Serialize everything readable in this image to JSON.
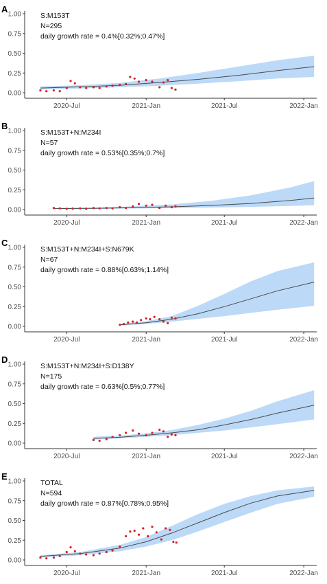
{
  "colors": {
    "ci_band": "#bcd9f7",
    "fit_line": "#4a4a4a",
    "points": "#d62021",
    "axis": "#333333"
  },
  "chart_data": [
    {
      "panel_letter": "A",
      "type": "line",
      "annotation": [
        "S:M153T",
        "N=295",
        "daily growth rate = 0.4%[0.32%;0.47%]"
      ],
      "x_ticks": [
        "2020-Jul",
        "2021-Jan",
        "2021-Jul",
        "2022-Jan"
      ],
      "y_ticks": [
        "0.00",
        "0.25",
        "0.50",
        "0.75",
        "1.00"
      ],
      "ylim": [
        0,
        1
      ],
      "fit": {
        "x": [
          "2020-05-01",
          "2020-08-01",
          "2020-11-01",
          "2021-02-01",
          "2021-05-01",
          "2021-08-01",
          "2021-11-01",
          "2022-01-25"
        ],
        "y": [
          0.06,
          0.075,
          0.095,
          0.13,
          0.17,
          0.22,
          0.28,
          0.33
        ],
        "lower": [
          0.04,
          0.055,
          0.07,
          0.09,
          0.115,
          0.145,
          0.18,
          0.2
        ],
        "upper": [
          0.08,
          0.095,
          0.125,
          0.18,
          0.25,
          0.33,
          0.41,
          0.47
        ]
      },
      "points": {
        "x": [
          "2020-05-01",
          "2020-05-15",
          "2020-06-01",
          "2020-06-15",
          "2020-07-01",
          "2020-07-10",
          "2020-07-20",
          "2020-08-01",
          "2020-08-15",
          "2020-09-01",
          "2020-09-15",
          "2020-10-01",
          "2020-10-15",
          "2020-11-01",
          "2020-11-15",
          "2020-11-25",
          "2020-12-05",
          "2020-12-15",
          "2021-01-01",
          "2021-01-15",
          "2021-02-01",
          "2021-02-10",
          "2021-02-20",
          "2021-03-01",
          "2021-03-10"
        ],
        "y": [
          0.03,
          0.02,
          0.03,
          0.02,
          0.06,
          0.15,
          0.12,
          0.07,
          0.06,
          0.07,
          0.06,
          0.08,
          0.09,
          0.1,
          0.11,
          0.2,
          0.18,
          0.14,
          0.16,
          0.14,
          0.07,
          0.13,
          0.16,
          0.06,
          0.04
        ]
      }
    },
    {
      "panel_letter": "B",
      "type": "line",
      "annotation": [
        "S:M153T+N:M234I",
        "N=57",
        "daily growth rate = 0.53%[0.35%;0.7%]"
      ],
      "x_ticks": [
        "2020-Jul",
        "2021-Jan",
        "2021-Jul",
        "2022-Jan"
      ],
      "y_ticks": [
        "0.00",
        "0.25",
        "0.50",
        "0.75",
        "1.00"
      ],
      "ylim": [
        0,
        1
      ],
      "fit": {
        "x": [
          "2020-06-01",
          "2020-09-01",
          "2020-12-01",
          "2021-03-01",
          "2021-06-01",
          "2021-09-01",
          "2021-12-01",
          "2022-01-25"
        ],
        "y": [
          0.012,
          0.016,
          0.024,
          0.035,
          0.052,
          0.077,
          0.115,
          0.145
        ],
        "lower": [
          0.007,
          0.009,
          0.013,
          0.018,
          0.025,
          0.034,
          0.045,
          0.055
        ],
        "upper": [
          0.02,
          0.025,
          0.04,
          0.065,
          0.11,
          0.18,
          0.28,
          0.36
        ]
      },
      "points": {
        "x": [
          "2020-06-01",
          "2020-06-15",
          "2020-07-01",
          "2020-07-15",
          "2020-08-01",
          "2020-08-15",
          "2020-09-01",
          "2020-09-15",
          "2020-10-01",
          "2020-10-15",
          "2020-11-01",
          "2020-11-15",
          "2020-12-01",
          "2020-12-15",
          "2021-01-01",
          "2021-01-15",
          "2021-02-01",
          "2021-02-15",
          "2021-03-01",
          "2021-03-10"
        ],
        "y": [
          0.02,
          0.015,
          0.01,
          0.012,
          0.015,
          0.01,
          0.02,
          0.015,
          0.02,
          0.015,
          0.03,
          0.02,
          0.04,
          0.07,
          0.05,
          0.06,
          0.02,
          0.05,
          0.03,
          0.04
        ]
      }
    },
    {
      "panel_letter": "C",
      "type": "line",
      "annotation": [
        "S:M153T+N:M234I+S:N679K",
        "N=67",
        "daily growth rate = 0.88%[0.63%;1.14%]"
      ],
      "x_ticks": [
        "2020-Jul",
        "2021-Jan",
        "2021-Jul",
        "2022-Jan"
      ],
      "y_ticks": [
        "0.00",
        "0.25",
        "0.50",
        "0.75",
        "1.00"
      ],
      "ylim": [
        0,
        1
      ],
      "fit": {
        "x": [
          "2020-11-01",
          "2021-01-01",
          "2021-03-01",
          "2021-05-01",
          "2021-07-01",
          "2021-09-01",
          "2021-11-01",
          "2022-01-25"
        ],
        "y": [
          0.02,
          0.045,
          0.09,
          0.16,
          0.25,
          0.35,
          0.45,
          0.56
        ],
        "lower": [
          0.012,
          0.03,
          0.06,
          0.095,
          0.13,
          0.17,
          0.21,
          0.26
        ],
        "upper": [
          0.03,
          0.065,
          0.13,
          0.26,
          0.41,
          0.57,
          0.7,
          0.81
        ]
      },
      "points": {
        "x": [
          "2020-11-01",
          "2020-11-10",
          "2020-11-20",
          "2020-12-01",
          "2020-12-10",
          "2020-12-20",
          "2021-01-01",
          "2021-01-10",
          "2021-01-20",
          "2021-02-01",
          "2021-02-10",
          "2021-02-20",
          "2021-03-01",
          "2021-03-10"
        ],
        "y": [
          0.02,
          0.03,
          0.05,
          0.06,
          0.05,
          0.08,
          0.1,
          0.09,
          0.12,
          0.09,
          0.06,
          0.04,
          0.11,
          0.1
        ]
      }
    },
    {
      "panel_letter": "D",
      "type": "line",
      "annotation": [
        "S:M153T+N:M234I+S:D138Y",
        "N=175",
        "daily growth rate = 0.63%[0.5%;0.77%]"
      ],
      "x_ticks": [
        "2020-Jul",
        "2021-Jan",
        "2021-Jul",
        "2022-Jan"
      ],
      "y_ticks": [
        "0.00",
        "0.25",
        "0.50",
        "0.75",
        "1.00"
      ],
      "ylim": [
        0,
        1
      ],
      "fit": {
        "x": [
          "2020-09-01",
          "2020-11-01",
          "2021-01-01",
          "2021-03-01",
          "2021-05-01",
          "2021-07-01",
          "2021-09-01",
          "2021-11-01",
          "2022-01-25"
        ],
        "y": [
          0.06,
          0.075,
          0.1,
          0.13,
          0.17,
          0.23,
          0.3,
          0.38,
          0.48
        ],
        "lower": [
          0.045,
          0.06,
          0.08,
          0.1,
          0.13,
          0.16,
          0.2,
          0.24,
          0.3
        ],
        "upper": [
          0.08,
          0.095,
          0.125,
          0.165,
          0.23,
          0.31,
          0.41,
          0.53,
          0.67
        ]
      },
      "points": {
        "x": [
          "2020-09-01",
          "2020-09-15",
          "2020-10-01",
          "2020-10-15",
          "2020-11-01",
          "2020-11-15",
          "2020-12-01",
          "2020-12-15",
          "2021-01-01",
          "2021-01-15",
          "2021-02-01",
          "2021-02-10",
          "2021-02-20",
          "2021-03-01",
          "2021-03-10"
        ],
        "y": [
          0.04,
          0.03,
          0.05,
          0.08,
          0.1,
          0.13,
          0.16,
          0.12,
          0.1,
          0.13,
          0.17,
          0.15,
          0.08,
          0.11,
          0.1
        ]
      }
    },
    {
      "panel_letter": "E",
      "type": "line",
      "annotation": [
        "TOTAL",
        "N=594",
        "daily growth rate = 0.87%[0.78%;0.95%]"
      ],
      "x_ticks": [
        "2020-Jul",
        "2021-Jan",
        "2021-Jul",
        "2022-Jan"
      ],
      "y_ticks": [
        "0.00",
        "0.25",
        "0.50",
        "0.75",
        "1.00"
      ],
      "ylim": [
        0,
        1
      ],
      "fit": {
        "x": [
          "2020-05-01",
          "2020-08-01",
          "2020-11-01",
          "2021-01-01",
          "2021-03-01",
          "2021-05-01",
          "2021-07-01",
          "2021-09-01",
          "2021-11-01",
          "2022-01-25"
        ],
        "y": [
          0.045,
          0.08,
          0.15,
          0.23,
          0.34,
          0.47,
          0.6,
          0.72,
          0.81,
          0.88
        ],
        "lower": [
          0.03,
          0.06,
          0.11,
          0.17,
          0.25,
          0.36,
          0.48,
          0.6,
          0.71,
          0.8
        ],
        "upper": [
          0.06,
          0.1,
          0.19,
          0.29,
          0.43,
          0.58,
          0.71,
          0.81,
          0.88,
          0.93
        ]
      },
      "points": {
        "x": [
          "2020-05-01",
          "2020-05-15",
          "2020-06-01",
          "2020-06-15",
          "2020-07-01",
          "2020-07-10",
          "2020-07-20",
          "2020-08-01",
          "2020-08-15",
          "2020-09-01",
          "2020-09-15",
          "2020-10-01",
          "2020-10-15",
          "2020-11-01",
          "2020-11-15",
          "2020-11-25",
          "2020-12-05",
          "2020-12-15",
          "2020-12-25",
          "2021-01-05",
          "2021-01-15",
          "2021-01-25",
          "2021-02-05",
          "2021-02-15",
          "2021-02-25",
          "2021-03-05",
          "2021-03-12"
        ],
        "y": [
          0.03,
          0.02,
          0.03,
          0.05,
          0.1,
          0.16,
          0.11,
          0.08,
          0.07,
          0.06,
          0.08,
          0.1,
          0.12,
          0.17,
          0.3,
          0.36,
          0.37,
          0.32,
          0.4,
          0.3,
          0.42,
          0.35,
          0.26,
          0.4,
          0.38,
          0.23,
          0.22
        ]
      }
    }
  ]
}
